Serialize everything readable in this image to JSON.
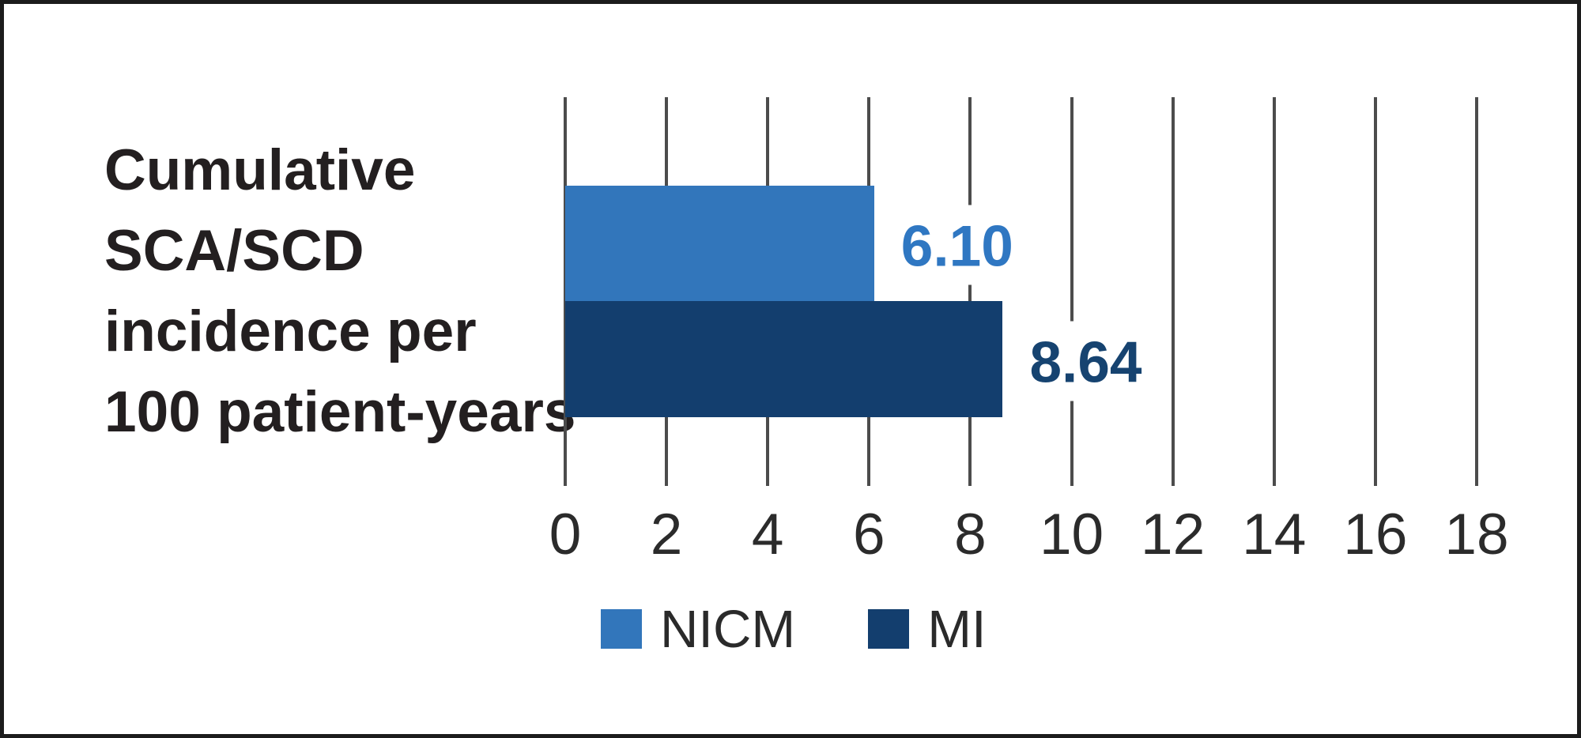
{
  "panel": {
    "border_color": "#1C1C1C",
    "background": "#FFFFFF"
  },
  "chart_data": {
    "type": "bar",
    "orientation": "horizontal",
    "title": "Cumulative SCA/SCD incidence per 100 patient-years",
    "title_lines": [
      "Cumulative",
      "SCA/SCD",
      "incidence per",
      "100 patient-years"
    ],
    "categories": [
      "NICM",
      "MI"
    ],
    "values": [
      6.1,
      8.64
    ],
    "value_labels": [
      "6.10",
      "8.64"
    ],
    "bar_colors": [
      "#3276BB",
      "#133E6E"
    ],
    "value_label_colors": [
      "#2F77C2",
      "#164370"
    ],
    "x_ticks": [
      "0",
      "2",
      "4",
      "6",
      "8",
      "10",
      "12",
      "14",
      "16",
      "18"
    ],
    "xlim": [
      0,
      18
    ],
    "grid": "vertical",
    "gridline_color": "#4C4C4C",
    "axis_text_color": "#2B2B2B",
    "title_color": "#231F20",
    "legend_position": "bottom",
    "legend": [
      {
        "label": "NICM",
        "color": "#3276BB"
      },
      {
        "label": "MI",
        "color": "#133E6E"
      }
    ]
  }
}
